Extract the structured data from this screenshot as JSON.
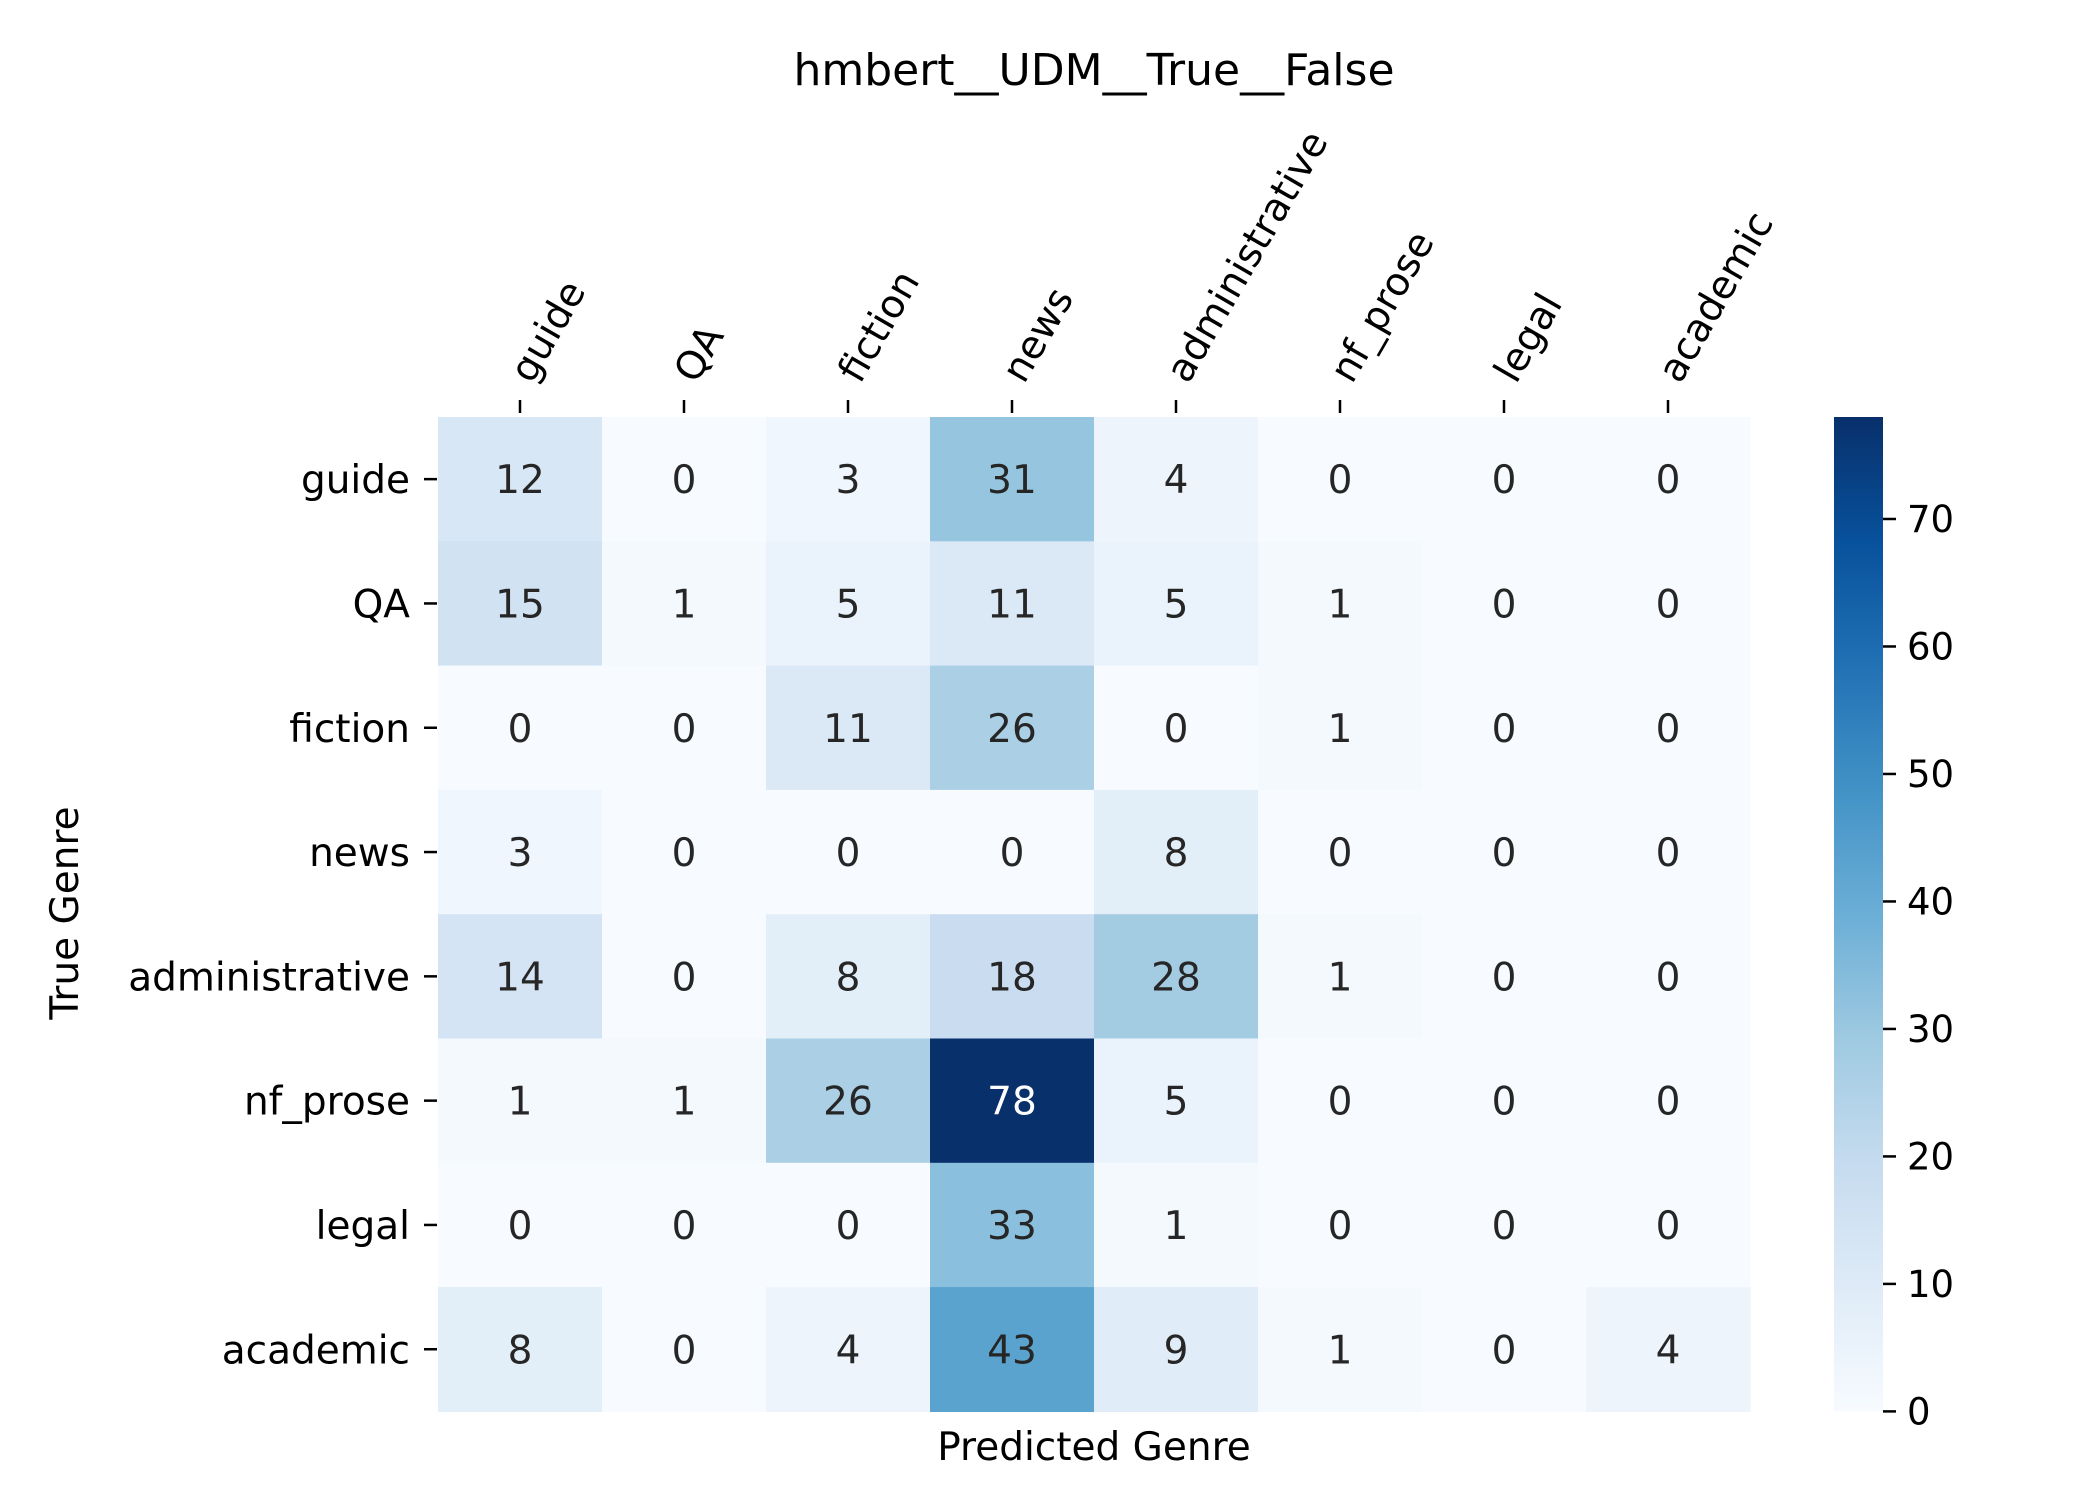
{
  "chart_data": {
    "type": "heatmap",
    "title": "hmbert__UDM__True__False",
    "xlabel": "Predicted Genre",
    "ylabel": "True Genre",
    "x_categories": [
      "guide",
      "QA",
      "fiction",
      "news",
      "administrative",
      "nf_prose",
      "legal",
      "academic"
    ],
    "y_categories": [
      "guide",
      "QA",
      "fiction",
      "news",
      "administrative",
      "nf_prose",
      "legal",
      "academic"
    ],
    "values": [
      [
        12,
        0,
        3,
        31,
        4,
        0,
        0,
        0
      ],
      [
        15,
        1,
        5,
        11,
        5,
        1,
        0,
        0
      ],
      [
        0,
        0,
        11,
        26,
        0,
        1,
        0,
        0
      ],
      [
        3,
        0,
        0,
        0,
        8,
        0,
        0,
        0
      ],
      [
        14,
        0,
        8,
        18,
        28,
        1,
        0,
        0
      ],
      [
        1,
        1,
        26,
        78,
        5,
        0,
        0,
        0
      ],
      [
        0,
        0,
        0,
        33,
        1,
        0,
        0,
        0
      ],
      [
        8,
        0,
        4,
        43,
        9,
        1,
        0,
        4
      ]
    ],
    "colormap": "Blues",
    "colorbar": {
      "range": [
        0,
        78
      ],
      "ticks": [
        0,
        10,
        20,
        30,
        40,
        50,
        60,
        70
      ],
      "tick_labels": [
        "0",
        "10",
        "20",
        "30",
        "40",
        "50",
        "60",
        "70"
      ]
    },
    "x_tick_position": "top",
    "legend": "colorbar-right",
    "grid": false
  }
}
